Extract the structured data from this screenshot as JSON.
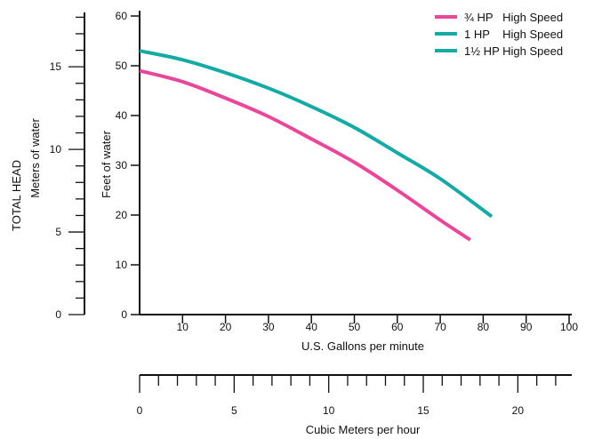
{
  "chart_data": {
    "type": "line",
    "title": "",
    "x_gpm": {
      "label": "U.S. Gallons per minute",
      "range": [
        0,
        100
      ],
      "ticks": [
        10,
        20,
        30,
        40,
        50,
        60,
        70,
        80,
        90,
        100
      ]
    },
    "x_m3h": {
      "label": "Cubic Meters per hour",
      "range": [
        0,
        22.7
      ],
      "ticks": [
        0,
        5,
        10,
        15,
        20
      ]
    },
    "y_feet": {
      "label": "Feet of water",
      "range": [
        0,
        60
      ],
      "ticks": [
        0,
        10,
        20,
        30,
        40,
        50,
        60
      ]
    },
    "y_meters": {
      "label_line1": "TOTAL HEAD",
      "label_line2": "Meters of water",
      "range": [
        0,
        18.29
      ],
      "ticks": [
        0,
        5,
        10,
        15
      ]
    },
    "legend": {
      "position": "top-right"
    },
    "series": [
      {
        "name": "¾ HP   High Speed",
        "color": "#e8489a",
        "x": [
          0,
          10,
          20,
          30,
          40,
          50,
          60,
          70,
          77
        ],
        "y": [
          49,
          46.8,
          43.5,
          39.8,
          35.3,
          30.6,
          25,
          19,
          15
        ]
      },
      {
        "name": "1 HP    High Speed",
        "color": "#16aaa4",
        "x": [
          0,
          10,
          20,
          30,
          40,
          50,
          60,
          70,
          82
        ],
        "y": [
          53,
          51.2,
          48.6,
          45.5,
          41.8,
          37.6,
          32.5,
          27.3,
          19.7
        ]
      },
      {
        "name": "1½ HP High Speed",
        "color": "#16aaa4",
        "x": [],
        "y": []
      }
    ]
  }
}
